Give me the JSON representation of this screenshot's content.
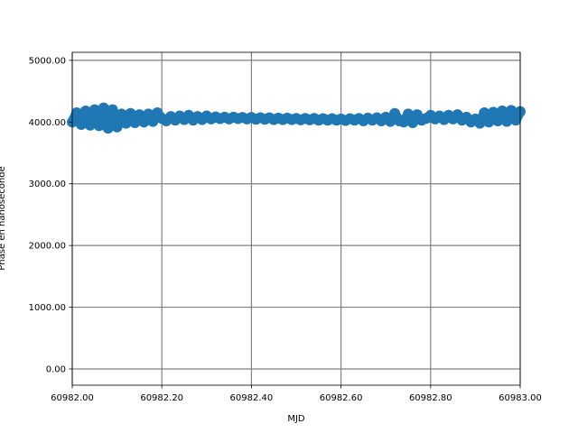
{
  "chart_data": {
    "type": "scatter",
    "title": "",
    "xlabel": "MJD",
    "ylabel": "Phase en nanoseconde",
    "xlim": [
      60982.0,
      60983.0
    ],
    "ylim": [
      -263,
      5130
    ],
    "xticks": [
      "60982.00",
      "60982.20",
      "60982.40",
      "60982.60",
      "60982.80",
      "60983.00"
    ],
    "xtick_values": [
      60982.0,
      60982.2,
      60982.4,
      60982.6,
      60982.8,
      60983.0
    ],
    "yticks": [
      "0.00",
      "1000.00",
      "2000.00",
      "3000.00",
      "4000.00",
      "5000.00"
    ],
    "ytick_values": [
      0,
      1000,
      2000,
      3000,
      4000,
      5000
    ],
    "grid": true,
    "grid_color": "#808080",
    "marker_color": "#1f77b4",
    "x_start": 60982.0,
    "x_step": 0.01,
    "y": [
      4000,
      4150,
      3960,
      4180,
      3950,
      4200,
      3940,
      4230,
      3900,
      4200,
      3920,
      4130,
      3980,
      4140,
      3990,
      4120,
      4000,
      4130,
      4010,
      4150,
      4060,
      4020,
      4090,
      4030,
      4100,
      4040,
      4110,
      4030,
      4090,
      4040,
      4100,
      4050,
      4085,
      4055,
      4080,
      4050,
      4080,
      4055,
      4075,
      4050,
      4075,
      4045,
      4070,
      4045,
      4070,
      4040,
      4065,
      4040,
      4065,
      4040,
      4060,
      4035,
      4060,
      4035,
      4060,
      4030,
      4055,
      4030,
      4055,
      4030,
      4050,
      4025,
      4055,
      4030,
      4060,
      4020,
      4065,
      4030,
      4070,
      4020,
      4080,
      4010,
      4140,
      4020,
      4000,
      4130,
      3990,
      4120,
      4030,
      4060,
      4110,
      4050,
      4100,
      4040,
      4110,
      4050,
      4120,
      4030,
      4080,
      4000,
      4050,
      3980,
      4150,
      4000,
      4160,
      4020,
      4180,
      4010,
      4190,
      4030,
      4170
    ]
  }
}
